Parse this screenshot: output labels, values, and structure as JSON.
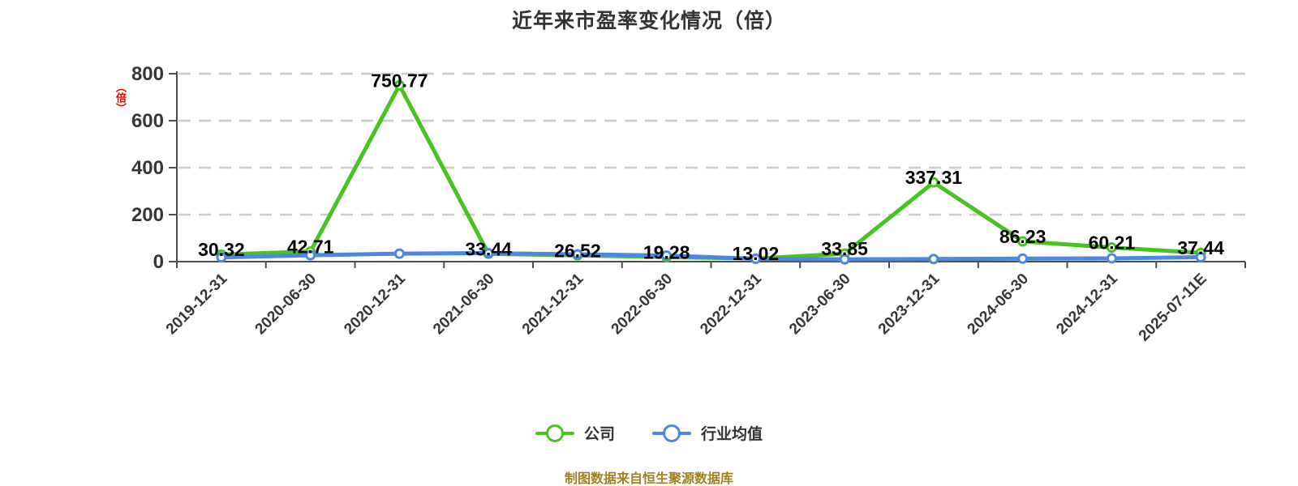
{
  "title": "近年来市盈率变化情况（倍）",
  "y_axis": {
    "unit_label": "（倍）",
    "unit_label_color": "#e60000",
    "ticks": [
      0,
      200,
      400,
      600,
      800
    ]
  },
  "legend": [
    {
      "key": "company",
      "label": "公司",
      "color": "#49c322"
    },
    {
      "key": "industry-average",
      "label": "行业均值",
      "color": "#4e87e2"
    }
  ],
  "footer": {
    "source_note": "制图数据来自恒生聚源数据库"
  },
  "colors": {
    "company_line": "#49c322",
    "industry_line": "#4e87e2",
    "grid": "#cccccc",
    "axis": "#4d4d4d",
    "axis_tick_label": "#363636",
    "value_label": "#000000",
    "title": "#333333",
    "footer": "#a1811f",
    "marker_fill": "#ffffff"
  },
  "chart_data": {
    "type": "line",
    "title": "近年来市盈率变化情况（倍）",
    "xlabel": "",
    "ylabel": "（倍）",
    "ylim": [
      0,
      800
    ],
    "y_ticks": [
      0,
      200,
      400,
      600,
      800
    ],
    "grid": "horizontal dashed lines every 200 units",
    "legend_position": "bottom",
    "categories": [
      "2019-12-31",
      "2020-06-30",
      "2020-12-31",
      "2021-06-30",
      "2021-12-31",
      "2022-06-30",
      "2022-12-31",
      "2023-06-30",
      "2023-12-31",
      "2024-06-30",
      "2024-12-31",
      "2025-07-11E"
    ],
    "series": [
      {
        "name": "公司",
        "color": "#49c322",
        "show_value_labels": true,
        "values": [
          30.32,
          42.71,
          750.77,
          33.44,
          26.52,
          19.28,
          13.02,
          33.85,
          337.31,
          86.23,
          60.21,
          37.44
        ],
        "value_labels": [
          "30.32",
          "42.71",
          "750.77",
          "33.44",
          "26.52",
          "19.28",
          "13.02",
          "33.85",
          "337.31",
          "86.23",
          "60.21",
          "37.44"
        ]
      },
      {
        "name": "行业均值",
        "color": "#4e87e2",
        "show_value_labels": false,
        "values_estimated_from_pixels": true,
        "values": [
          18,
          27,
          34,
          36,
          31,
          26,
          12,
          10,
          11,
          13,
          14,
          19
        ]
      }
    ]
  }
}
